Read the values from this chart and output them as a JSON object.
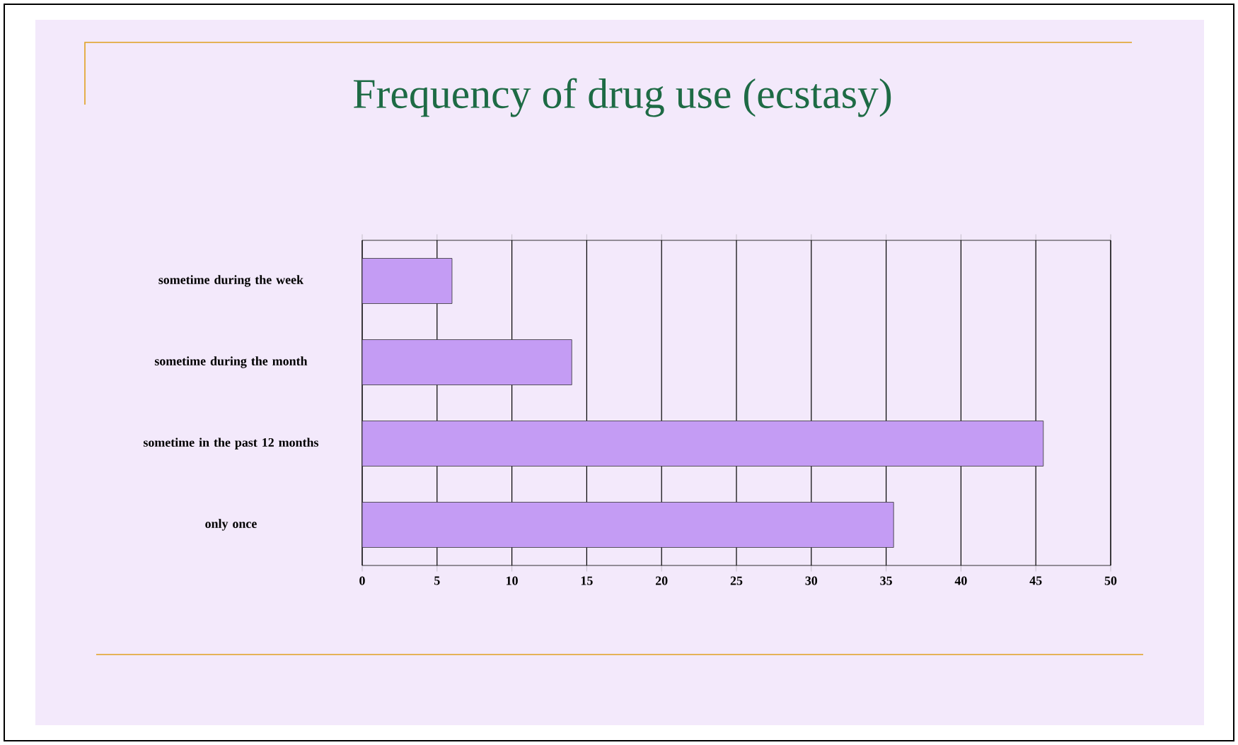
{
  "chart_data": {
    "type": "bar",
    "orientation": "horizontal",
    "title": "Frequency of drug use (ecstasy)",
    "categories": [
      "sometime during the week",
      "sometime during the month",
      "sometime in the past 12 months",
      "only once"
    ],
    "values": [
      6,
      14,
      45.5,
      35.5
    ],
    "color": "#c49cf4",
    "xlim": [
      0,
      50
    ],
    "xticks": [
      0,
      5,
      10,
      15,
      20,
      25,
      30,
      35,
      40,
      45,
      50
    ],
    "grid": "x"
  }
}
